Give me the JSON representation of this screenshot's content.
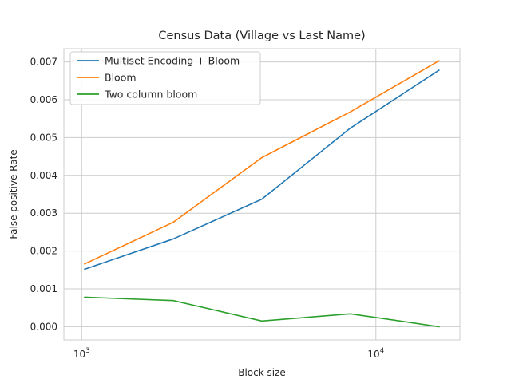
{
  "chart_data": {
    "type": "line",
    "title": "Census Data (Village vs Last Name)",
    "xlabel": "Block size",
    "ylabel": "False positive Rate",
    "xscale": "log",
    "x": [
      1024,
      2048,
      4096,
      8192,
      16384
    ],
    "xlim": [
      870,
      19300
    ],
    "ylim": [
      -0.00035,
      0.00735
    ],
    "yticks": [
      0.0,
      0.001,
      0.002,
      0.003,
      0.004,
      0.005,
      0.006,
      0.007
    ],
    "ytick_labels": [
      "0.000",
      "0.001",
      "0.002",
      "0.003",
      "0.004",
      "0.005",
      "0.006",
      "0.007"
    ],
    "xticks": [
      {
        "value": 1000,
        "base": "10",
        "exp": "3"
      },
      {
        "value": 10000,
        "base": "10",
        "exp": "4"
      }
    ],
    "grid": true,
    "legend_position": "top-left",
    "series": [
      {
        "name": "Multiset Encoding + Bloom",
        "color": "#1f77b4",
        "values": [
          0.00152,
          0.00232,
          0.00337,
          0.00525,
          0.00678
        ]
      },
      {
        "name": "Bloom",
        "color": "#ff7f0e",
        "values": [
          0.00166,
          0.00276,
          0.00447,
          0.00568,
          0.00703
        ]
      },
      {
        "name": "Two column bloom",
        "color": "#2ca02c",
        "values": [
          0.00078,
          0.00069,
          0.00015,
          0.00034,
          0.0
        ]
      }
    ]
  }
}
